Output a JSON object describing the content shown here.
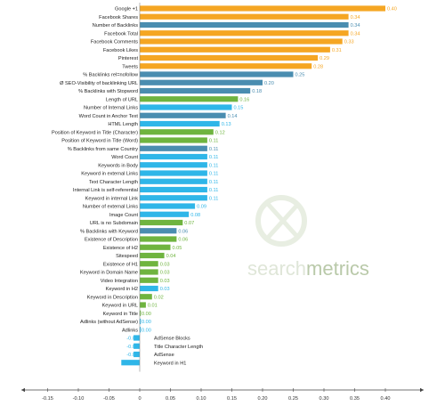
{
  "chart_data": {
    "type": "bar",
    "orientation": "horizontal",
    "title": "",
    "xlabel": "",
    "ylabel": "",
    "xlim": [
      -0.15,
      0.43
    ],
    "x_ticks": [
      "-0.15",
      "-0.10",
      "-0.05",
      "0",
      "0.05",
      "0.10",
      "0.15",
      "0.20",
      "0.25",
      "0.30",
      "0.35",
      "0.40"
    ],
    "x_tick_values": [
      -0.15,
      -0.1,
      -0.05,
      0,
      0.05,
      0.1,
      0.15,
      0.2,
      0.25,
      0.3,
      0.35,
      0.4
    ],
    "grid": false,
    "legend": "none",
    "colors": {
      "orange": "#f5a623",
      "blue": "#2fb6e8",
      "steel": "#4a8db0",
      "green": "#6fb43f"
    },
    "bars": [
      {
        "label": "Google +1",
        "value": 0.4,
        "text": "0.40",
        "color": "orange"
      },
      {
        "label": "Facebook Shares",
        "value": 0.34,
        "text": "0.34",
        "color": "orange"
      },
      {
        "label": "Number of Backlinks",
        "value": 0.34,
        "text": "0.34",
        "color": "steel"
      },
      {
        "label": "Facebook Total",
        "value": 0.34,
        "text": "0.34",
        "color": "orange"
      },
      {
        "label": "Facebook Comments",
        "value": 0.33,
        "text": "0.33",
        "color": "orange"
      },
      {
        "label": "Facebook Likes",
        "value": 0.31,
        "text": "0.31",
        "color": "orange"
      },
      {
        "label": "Pinterest",
        "value": 0.29,
        "text": "0.29",
        "color": "orange"
      },
      {
        "label": "Tweets",
        "value": 0.28,
        "text": "0.28",
        "color": "orange"
      },
      {
        "label": "% Backlinks rel=nofollow",
        "value": 0.25,
        "text": "0.25",
        "color": "steel"
      },
      {
        "label": "Ø SEO-Visibility of backlinking URL",
        "value": 0.2,
        "text": "0.20",
        "color": "steel"
      },
      {
        "label": "% Backlinks with Stopword",
        "value": 0.18,
        "text": "0.18",
        "color": "steel"
      },
      {
        "label": "Length of URL",
        "value": 0.16,
        "text": "0.16",
        "color": "green"
      },
      {
        "label": "Number of Internal Links",
        "value": 0.15,
        "text": "0.15",
        "color": "blue"
      },
      {
        "label": "Word Count in Anchor Text",
        "value": 0.14,
        "text": "0.14",
        "color": "steel"
      },
      {
        "label": "HTML Length",
        "value": 0.13,
        "text": "0.13",
        "color": "blue"
      },
      {
        "label": "Position of Keyword in Title (Character)",
        "value": 0.12,
        "text": "0.12",
        "color": "green"
      },
      {
        "label": "Position of Keyword in Title (Word)",
        "value": 0.11,
        "text": "0.11",
        "color": "green"
      },
      {
        "label": "% Backlinks from same Country",
        "value": 0.11,
        "text": "0.11",
        "color": "steel"
      },
      {
        "label": "Word Count",
        "value": 0.11,
        "text": "0.11",
        "color": "blue"
      },
      {
        "label": "Keywords in Body",
        "value": 0.11,
        "text": "0.11",
        "color": "blue"
      },
      {
        "label": "Keyword in external Links",
        "value": 0.11,
        "text": "0.11",
        "color": "blue"
      },
      {
        "label": "Text Character Length",
        "value": 0.11,
        "text": "0.11",
        "color": "blue"
      },
      {
        "label": "Internal Link is self-referential",
        "value": 0.11,
        "text": "0.11",
        "color": "blue"
      },
      {
        "label": "Keyword in internal Link",
        "value": 0.11,
        "text": "0.11",
        "color": "blue"
      },
      {
        "label": "Number of external Links",
        "value": 0.09,
        "text": "0.09",
        "color": "blue"
      },
      {
        "label": "Image Count",
        "value": 0.08,
        "text": "0.08",
        "color": "blue"
      },
      {
        "label": "URL is no Subdomain",
        "value": 0.07,
        "text": "0.07",
        "color": "green"
      },
      {
        "label": "% Backlinks with Keyword",
        "value": 0.06,
        "text": "0.06",
        "color": "steel"
      },
      {
        "label": "Existence of Description",
        "value": 0.06,
        "text": "0.06",
        "color": "green"
      },
      {
        "label": "Existence of H2",
        "value": 0.05,
        "text": "0.05",
        "color": "green"
      },
      {
        "label": "Sitespeed",
        "value": 0.04,
        "text": "0.04",
        "color": "green"
      },
      {
        "label": "Existence of H1",
        "value": 0.03,
        "text": "0.03",
        "color": "green"
      },
      {
        "label": "Keyword in Domain Name",
        "value": 0.03,
        "text": "0.03",
        "color": "green"
      },
      {
        "label": "Video Integration",
        "value": 0.03,
        "text": "0.03",
        "color": "green"
      },
      {
        "label": "Keyword in H2",
        "value": 0.03,
        "text": "0.03",
        "color": "blue"
      },
      {
        "label": "Keyword in Description",
        "value": 0.02,
        "text": "0.02",
        "color": "green"
      },
      {
        "label": "Keyword in URL",
        "value": 0.01,
        "text": "0.01",
        "color": "green"
      },
      {
        "label": "Keyword in Title",
        "value": 0.0,
        "text": "0.00",
        "color": "green"
      },
      {
        "label": "Adlinks (without AdSense)",
        "value": 0.0,
        "text": "0.00",
        "color": "blue"
      },
      {
        "label": "Adlinks",
        "value": 0.0,
        "text": "0.00",
        "color": "blue"
      },
      {
        "label": "AdSense Blocks",
        "value": -0.01,
        "text": "-0.01",
        "color": "blue"
      },
      {
        "label": "Title Character Length",
        "value": -0.01,
        "text": "-0.01",
        "color": "blue"
      },
      {
        "label": "AdSense",
        "value": -0.01,
        "text": "-0.01",
        "color": "blue"
      },
      {
        "label": "Keyword in H1",
        "value": -0.03,
        "text": "-0.03",
        "color": "blue"
      }
    ]
  },
  "watermark": {
    "text_a": "search",
    "text_b": "metrics"
  }
}
